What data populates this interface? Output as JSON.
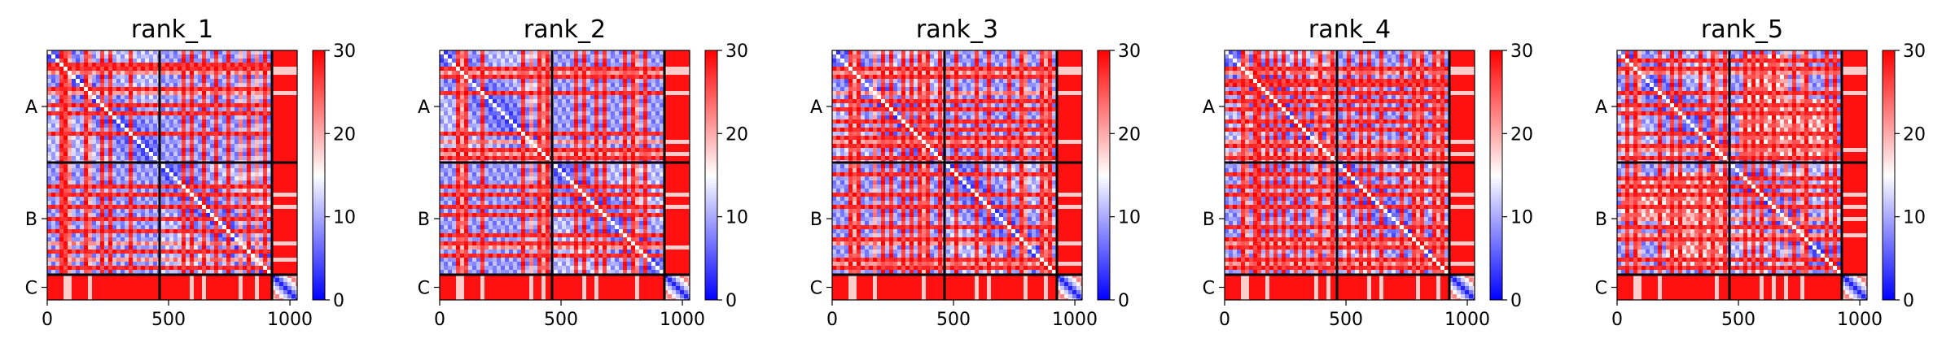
{
  "chart_data": {
    "type": "heatmap",
    "colormap": {
      "name": "bwr",
      "low": "#0000ff",
      "mid": "#ffffff",
      "high": "#ff0000"
    },
    "value_range": [
      0,
      30
    ],
    "colorbar_ticks": [
      0,
      10,
      20,
      30
    ],
    "x_ticks": [
      0,
      500,
      1000
    ],
    "x_range": [
      0,
      1030
    ],
    "y_ticks": [
      "A",
      "B",
      "C"
    ],
    "chain_boundaries": [
      463,
      926
    ],
    "chain_end": 1030,
    "panels": [
      {
        "title": "rank_1",
        "band_rows": [
          60,
          73,
          118,
          150,
          165,
          203,
          223,
          262,
          300,
          345,
          370,
          403,
          435,
          455,
          520,
          560,
          600,
          650,
          700,
          745,
          790,
          830,
          870,
          900
        ],
        "band_cols": [
          78,
          92,
          180,
          370,
          420,
          590,
          640,
          720,
          800,
          860
        ],
        "diag_patches": []
      },
      {
        "title": "rank_2",
        "band_rows": [
          52,
          72,
          110,
          150,
          180,
          203,
          250,
          300,
          340,
          370,
          410,
          440,
          520,
          560,
          600,
          640,
          680,
          720,
          760,
          800,
          850,
          890
        ],
        "band_cols": [
          78,
          90,
          180,
          380,
          425,
          590,
          640,
          720,
          810,
          870
        ],
        "diag_patches": []
      },
      {
        "title": "rank_3",
        "band_rows": [
          50,
          72,
          115,
          150,
          170,
          205,
          240,
          290,
          330,
          365,
          400,
          440,
          510,
          555,
          600,
          640,
          690,
          730,
          780,
          820,
          860,
          900
        ],
        "band_cols": [
          78,
          92,
          182,
          380,
          420,
          590,
          640,
          720,
          800,
          880
        ],
        "diag_patches": []
      },
      {
        "title": "rank_4",
        "band_rows": [
          50,
          73,
          120,
          148,
          175,
          205,
          245,
          290,
          330,
          370,
          400,
          445,
          510,
          560,
          600,
          645,
          690,
          735,
          780,
          815,
          860,
          895
        ],
        "band_cols": [
          78,
          90,
          180,
          380,
          422,
          590,
          640,
          720,
          800,
          875
        ],
        "diag_patches": []
      },
      {
        "title": "rank_5",
        "band_rows": [
          40,
          72,
          100,
          150,
          175,
          203,
          232,
          265,
          300,
          340,
          400,
          440,
          505,
          530,
          560,
          600,
          645,
          690,
          735,
          780,
          820,
          860,
          900
        ],
        "band_cols": [
          75,
          92,
          100,
          180,
          370,
          410,
          590,
          640,
          700,
          760,
          840
        ],
        "diag_patches": [
          [
            500,
            680,
            200,
            430
          ],
          [
            700,
            900,
            200,
            430
          ],
          [
            20,
            200,
            520,
            700
          ],
          [
            200,
            430,
            700,
            900
          ]
        ]
      }
    ]
  }
}
